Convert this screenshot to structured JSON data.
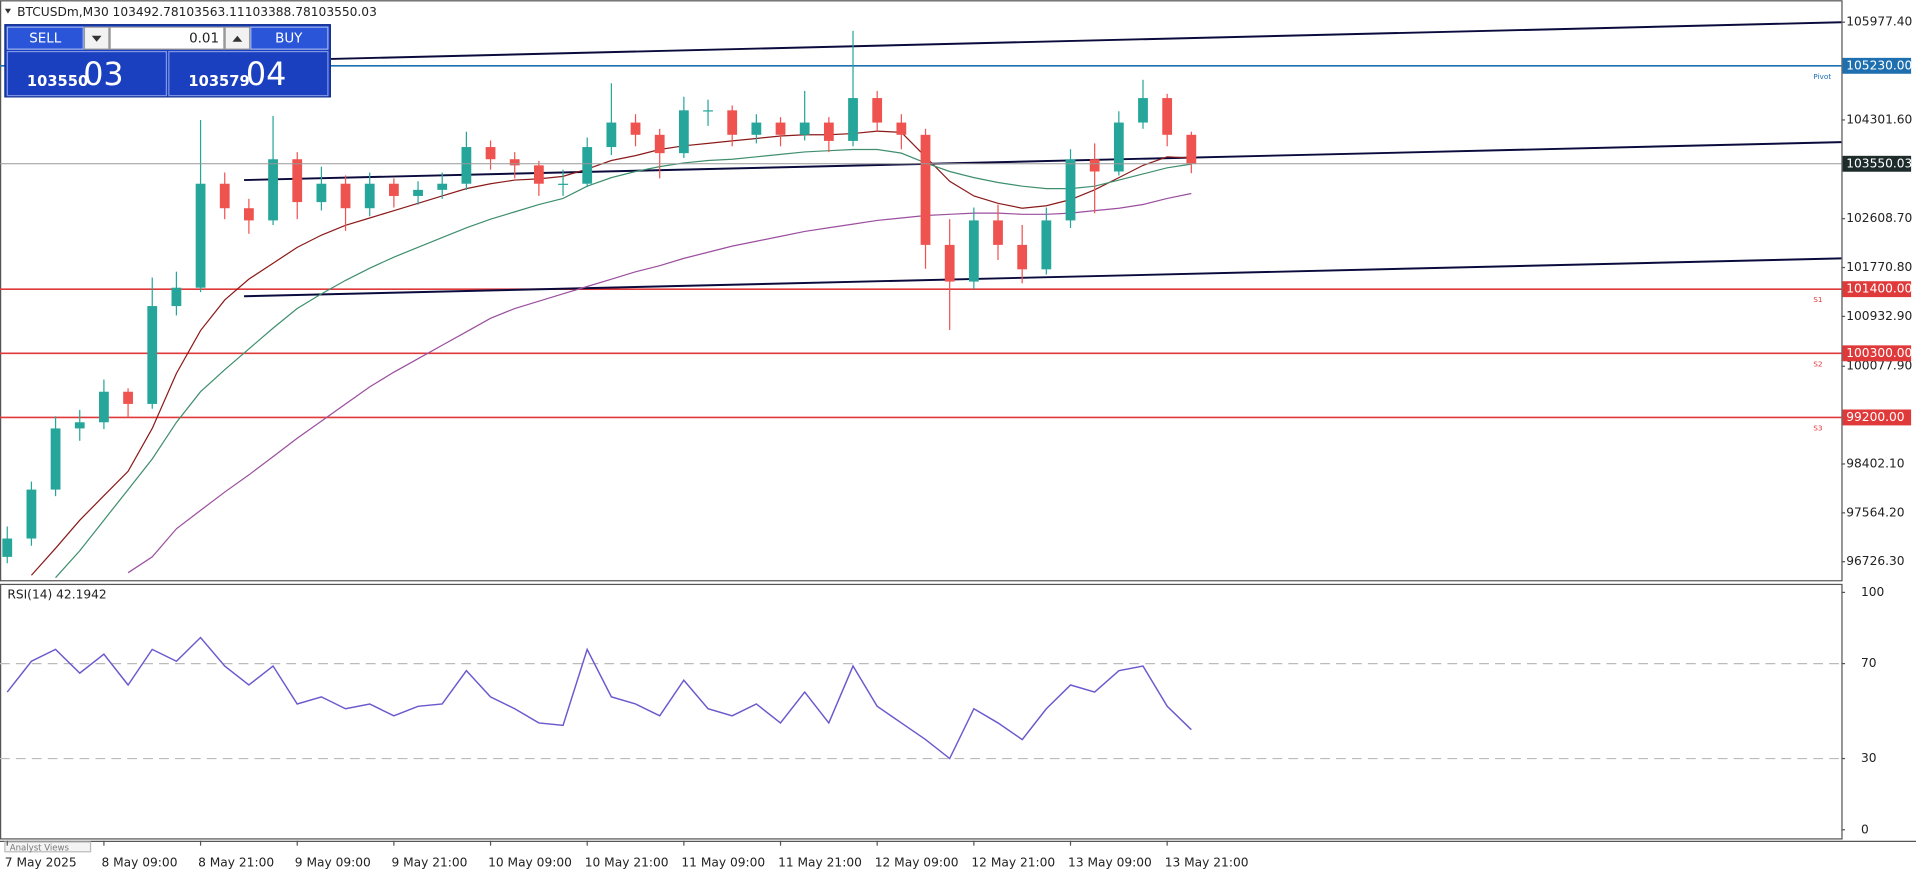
{
  "trade_panel": {
    "sell": "SELL",
    "buy": "BUY",
    "volume": "0.01",
    "bid_main": "103550",
    "bid_big": "03",
    "ask_main": "103579",
    "ask_big": "04"
  },
  "tabs": [
    "Analyst Views"
  ],
  "chart_data": [
    {
      "type": "candlestick",
      "title": "BTCUSDm,M30",
      "header_values": [
        103492.78,
        103563.11,
        103388.78,
        103550.03
      ],
      "categories": [
        "7 May 2025",
        null,
        null,
        null,
        "8 May 09:00",
        null,
        null,
        null,
        "8 May 21:00",
        null,
        null,
        null,
        "9 May 09:00",
        null,
        null,
        null,
        "9 May 21:00",
        null,
        null,
        null,
        "10 May 09:00",
        null,
        null,
        null,
        "10 May 21:00",
        null,
        null,
        null,
        "11 May 09:00",
        null,
        null,
        null,
        "11 May 21:00",
        null,
        null,
        null,
        "12 May 09:00",
        null,
        null,
        null,
        "12 May 21:00",
        null,
        null,
        null,
        "13 May 09:00",
        null,
        null,
        null,
        "13 May 21:00",
        null
      ],
      "xlim": [
        -0.3,
        75.9
      ],
      "ohlc": [
        [
          96809,
          97330,
          96700,
          97124
        ],
        [
          97124,
          98100,
          97000,
          97963
        ],
        [
          97963,
          99220,
          97850,
          99012
        ],
        [
          99012,
          99330,
          98800,
          99117
        ],
        [
          99117,
          99850,
          99000,
          99641
        ],
        [
          99641,
          99700,
          99200,
          99432
        ],
        [
          99432,
          101600,
          99350,
          101110
        ],
        [
          101110,
          101700,
          100950,
          101425
        ],
        [
          101425,
          104300,
          101350,
          103208
        ],
        [
          103208,
          103400,
          102600,
          102788
        ],
        [
          102788,
          102950,
          102350,
          102579
        ],
        [
          102579,
          104370,
          102500,
          103628
        ],
        [
          103628,
          103750,
          102600,
          102893
        ],
        [
          102893,
          103500,
          102750,
          103208
        ],
        [
          103208,
          103350,
          102400,
          102788
        ],
        [
          102788,
          103400,
          102650,
          103208
        ],
        [
          103208,
          103300,
          102800,
          102998
        ],
        [
          102998,
          103250,
          102850,
          103103
        ],
        [
          103103,
          103400,
          102950,
          103208
        ],
        [
          103208,
          104100,
          103100,
          103837
        ],
        [
          103837,
          103950,
          103450,
          103628
        ],
        [
          103628,
          103750,
          103300,
          103523
        ],
        [
          103523,
          103600,
          103000,
          103208
        ],
        [
          103208,
          103450,
          103000,
          103208
        ],
        [
          103208,
          104000,
          103150,
          103837
        ],
        [
          103837,
          104930,
          103700,
          104257
        ],
        [
          104257,
          104400,
          103850,
          104047
        ],
        [
          104047,
          104150,
          103300,
          103732
        ],
        [
          103732,
          104700,
          103650,
          104467
        ],
        [
          104467,
          104650,
          104200,
          104467
        ],
        [
          104467,
          104550,
          103850,
          104047
        ],
        [
          104047,
          104400,
          103900,
          104257
        ],
        [
          104257,
          104350,
          103850,
          104047
        ],
        [
          104047,
          104800,
          103950,
          104257
        ],
        [
          104257,
          104350,
          103750,
          103942
        ],
        [
          103942,
          105830,
          103850,
          104677
        ],
        [
          104677,
          104800,
          104100,
          104257
        ],
        [
          104257,
          104400,
          103800,
          104047
        ],
        [
          104047,
          104150,
          101750,
          102159
        ],
        [
          102159,
          102600,
          100700,
          101530
        ],
        [
          101530,
          102800,
          101400,
          102579
        ],
        [
          102579,
          102850,
          101900,
          102159
        ],
        [
          102159,
          102500,
          101500,
          101740
        ],
        [
          101740,
          102800,
          101650,
          102579
        ],
        [
          102579,
          103800,
          102450,
          103628
        ],
        [
          103628,
          103900,
          102700,
          103418
        ],
        [
          103418,
          104450,
          103350,
          104257
        ],
        [
          104257,
          104990,
          104150,
          104677
        ],
        [
          104677,
          104750,
          103850,
          104047
        ],
        [
          104047,
          104100,
          103388.78,
          103550.03
        ]
      ],
      "up_color": "#26a69a",
      "down_color": "#ef5350",
      "series": [
        {
          "color": "#8b1a1a",
          "values": [
            null,
            96494,
            96956,
            97438,
            97858,
            98278,
            99012,
            99956,
            100690,
            101215,
            101572,
            101844,
            102117,
            102327,
            102495,
            102620,
            102746,
            102872,
            102998,
            103124,
            103208,
            103271,
            103292,
            103334,
            103460,
            103607,
            103691,
            103796,
            103858,
            103900,
            103942,
            103984,
            104026,
            104047,
            104047,
            104068,
            104110,
            104089,
            103670,
            103250,
            102998,
            102872,
            102788,
            102830,
            102935,
            103103,
            103313,
            103523,
            103670,
            103649
          ]
        },
        {
          "color": "#3f8f6e",
          "values": [
            null,
            null,
            96453,
            96914,
            97438,
            97963,
            98488,
            99117,
            99641,
            100019,
            100376,
            100732,
            101068,
            101320,
            101551,
            101761,
            101949,
            102117,
            102285,
            102453,
            102600,
            102726,
            102851,
            102956,
            103166,
            103313,
            103418,
            103502,
            103565,
            103607,
            103628,
            103670,
            103712,
            103754,
            103775,
            103796,
            103796,
            103733,
            103565,
            103418,
            103313,
            103229,
            103166,
            103124,
            103124,
            103166,
            103271,
            103376,
            103481,
            103544
          ]
        },
        {
          "color": "#9b4f9e",
          "values": [
            null,
            null,
            null,
            null,
            null,
            96537,
            96809,
            97292,
            97606,
            97921,
            98215,
            98530,
            98844,
            99138,
            99432,
            99725,
            99977,
            100208,
            100439,
            100669,
            100900,
            101068,
            101194,
            101320,
            101446,
            101572,
            101697,
            101802,
            101928,
            102033,
            102138,
            102222,
            102306,
            102390,
            102453,
            102516,
            102579,
            102620,
            102662,
            102684,
            102705,
            102705,
            102684,
            102684,
            102705,
            102746,
            102788,
            102851,
            102956,
            103040
          ]
        }
      ],
      "ylim": [
        96410,
        106355
      ],
      "yticks": [
        {
          "value": 105977.4,
          "label": "105977.40"
        },
        {
          "value": 104301.6,
          "label": "104301.60"
        },
        {
          "value": 102608.7,
          "label": "102608.70"
        },
        {
          "value": 101770.8,
          "label": "101770.80"
        },
        {
          "value": 100932.9,
          "label": "100932.90"
        },
        {
          "value": 100077.9,
          "label": "100077.90"
        },
        {
          "value": 98402.1,
          "label": "98402.10"
        },
        {
          "value": 97564.2,
          "label": "97564.20"
        },
        {
          "value": 96726.3,
          "label": "96726.30"
        }
      ],
      "levels": [
        {
          "name": "Pivot",
          "value": 105230,
          "value_label": "105230.00",
          "color": "#1e6fb0"
        },
        {
          "name": "S1",
          "value": 101400,
          "value_label": "101400.00",
          "color": "#e0393a"
        },
        {
          "name": "S2",
          "value": 100300,
          "value_label": "100300.00",
          "color": "#e0393a"
        },
        {
          "name": "S3",
          "value": 99200,
          "value_label": "99200.00",
          "color": "#e0393a"
        }
      ],
      "last_price": 103550.03,
      "trendlines": [
        {
          "x": [
            13.4,
            75.9
          ],
          "values": [
            105348,
            105977
          ],
          "color": "#0a0a3c"
        },
        {
          "x": [
            9.8,
            75.9
          ],
          "values": [
            103271,
            103921
          ],
          "color": "#0a0a3c"
        },
        {
          "x": [
            9.8,
            75.9
          ],
          "values": [
            101278,
            101928
          ],
          "color": "#0a0a3c"
        }
      ]
    },
    {
      "type": "line",
      "title": "RSI(14) 42.1942",
      "series": [
        {
          "color": "#6a5acd",
          "values": [
            58,
            71,
            76,
            66,
            74,
            61,
            76,
            71,
            81,
            69,
            61,
            69,
            53,
            56,
            51,
            53,
            48,
            52,
            53,
            67,
            56,
            51,
            45,
            44,
            76,
            56,
            53,
            48,
            63,
            51,
            48,
            53,
            45,
            58,
            45,
            69,
            52,
            45,
            38,
            30,
            51,
            45,
            38,
            51,
            61,
            58,
            67,
            69,
            52,
            42.1942
          ]
        }
      ],
      "ylim": [
        -3.6,
        103.1
      ],
      "yticks": [
        100,
        70,
        30,
        0
      ],
      "levels": [
        70,
        30
      ]
    }
  ]
}
